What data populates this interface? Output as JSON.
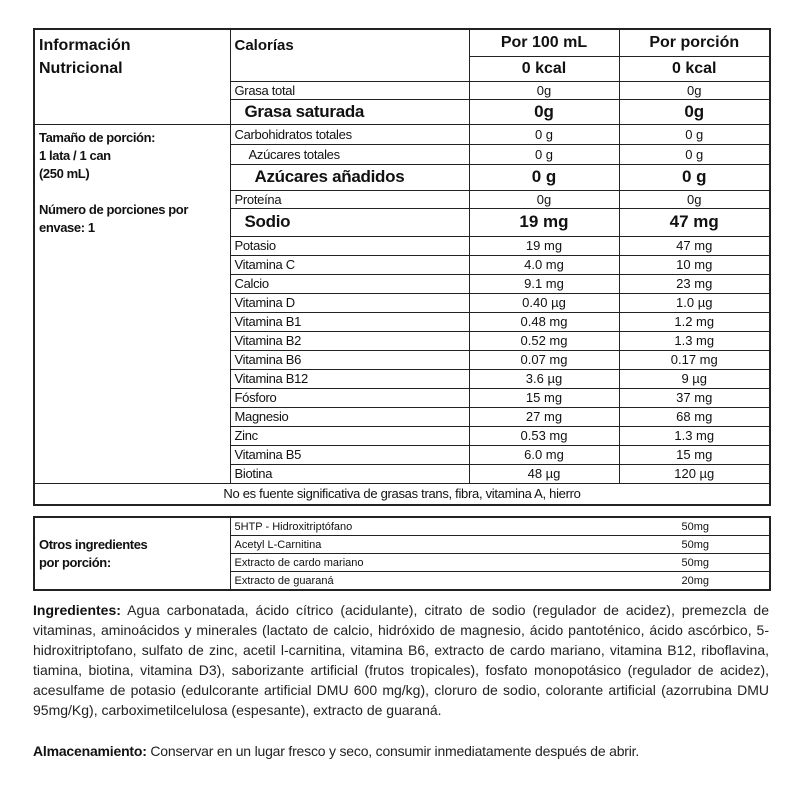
{
  "header": {
    "title_line1": "Información",
    "title_line2": "Nutricional",
    "calories_label": "Calorías",
    "col1": "Por 100 mL",
    "col2": "Por porción",
    "kcal1": "0 kcal",
    "kcal2": "0 kcal"
  },
  "serving": {
    "size_label": "Tamaño de porción:",
    "size_line2": "1 lata / 1 can",
    "size_line3": "(250 mL)",
    "servings_label": "Número de porciones por",
    "servings_line2": "envase: 1"
  },
  "rows": [
    {
      "name": "Grasa total",
      "v1": "0g",
      "v2": "0g",
      "big": false
    },
    {
      "name": "Grasa saturada",
      "v1": "0g",
      "v2": "0g",
      "big": true
    },
    {
      "name": "Carbohidratos totales",
      "v1": "0 g",
      "v2": "0 g",
      "big": false
    },
    {
      "name": "Azúcares totales",
      "v1": "0 g",
      "v2": "0 g",
      "big": false
    },
    {
      "name": "Azúcares añadidos",
      "v1": "0 g",
      "v2": "0 g",
      "big": true
    },
    {
      "name": "Proteína",
      "v1": "0g",
      "v2": "0g",
      "big": false
    },
    {
      "name": "Sodio",
      "v1": "19 mg",
      "v2": "47 mg",
      "big": true
    },
    {
      "name": "Potasio",
      "v1": "19 mg",
      "v2": "47 mg"
    },
    {
      "name": "Vitamina C",
      "v1": "4.0 mg",
      "v2": "10 mg"
    },
    {
      "name": "Calcio",
      "v1": "9.1 mg",
      "v2": "23 mg"
    },
    {
      "name": "Vitamina D",
      "v1": "0.40 µg",
      "v2": "1.0 µg"
    },
    {
      "name": "Vitamina B1",
      "v1": "0.48 mg",
      "v2": "1.2 mg"
    },
    {
      "name": "Vitamina B2",
      "v1": "0.52 mg",
      "v2": "1.3 mg"
    },
    {
      "name": "Vitamina B6",
      "v1": "0.07 mg",
      "v2": "0.17 mg"
    },
    {
      "name": "Vitamina B12",
      "v1": "3.6 µg",
      "v2": "9 µg"
    },
    {
      "name": "Fósforo",
      "v1": "15 mg",
      "v2": "37 mg"
    },
    {
      "name": "Magnesio",
      "v1": "27 mg",
      "v2": "68 mg"
    },
    {
      "name": "Zinc",
      "v1": "0.53 mg",
      "v2": "1.3 mg"
    },
    {
      "name": "Vitamina B5",
      "v1": "6.0 mg",
      "v2": "15 mg"
    },
    {
      "name": "Biotina",
      "v1": "48 µg",
      "v2": "120 µg"
    }
  ],
  "footnote": "No es fuente significativa de grasas trans, fibra, vitamina A, hierro",
  "other": {
    "label_line1": "Otros ingredientes",
    "label_line2": "por porción:",
    "items": [
      {
        "name": "5HTP - Hidroxitriptófano",
        "amount": "50mg"
      },
      {
        "name": "Acetyl L-Carnitina",
        "amount": "50mg"
      },
      {
        "name": "Extracto de cardo mariano",
        "amount": "50mg"
      },
      {
        "name": "Extracto de guaraná",
        "amount": "20mg"
      }
    ]
  },
  "ingredients": {
    "label": "Ingredientes:",
    "text": " Agua carbonatada, ácido cítrico (acidulante), citrato de sodio (regulador de acidez), premezcla de vitaminas, aminoácidos y minerales (lactato de calcio, hidróxido de magnesio, ácido pantoténico, ácido ascórbico, 5-hidroxitriptofano, sulfato de zinc, acetil l-carnitina, vitamina B6, extracto de cardo mariano, vitamina B12, riboflavina, tiamina, biotina, vitamina D3), saborizante artificial (frutos tropicales), fosfato monopotásico (regulador de acidez), acesulfame de potasio (edulcorante artificial DMU 600 mg/kg), cloruro de sodio, colorante artificial (azorrubina DMU 95mg/Kg), carboximetilcelulosa (espesante), extracto de guaraná."
  },
  "storage": {
    "label": "Almacenamiento:",
    "text": " Conservar en un lugar fresco y seco, consumir inmediatamente después de abrir."
  }
}
